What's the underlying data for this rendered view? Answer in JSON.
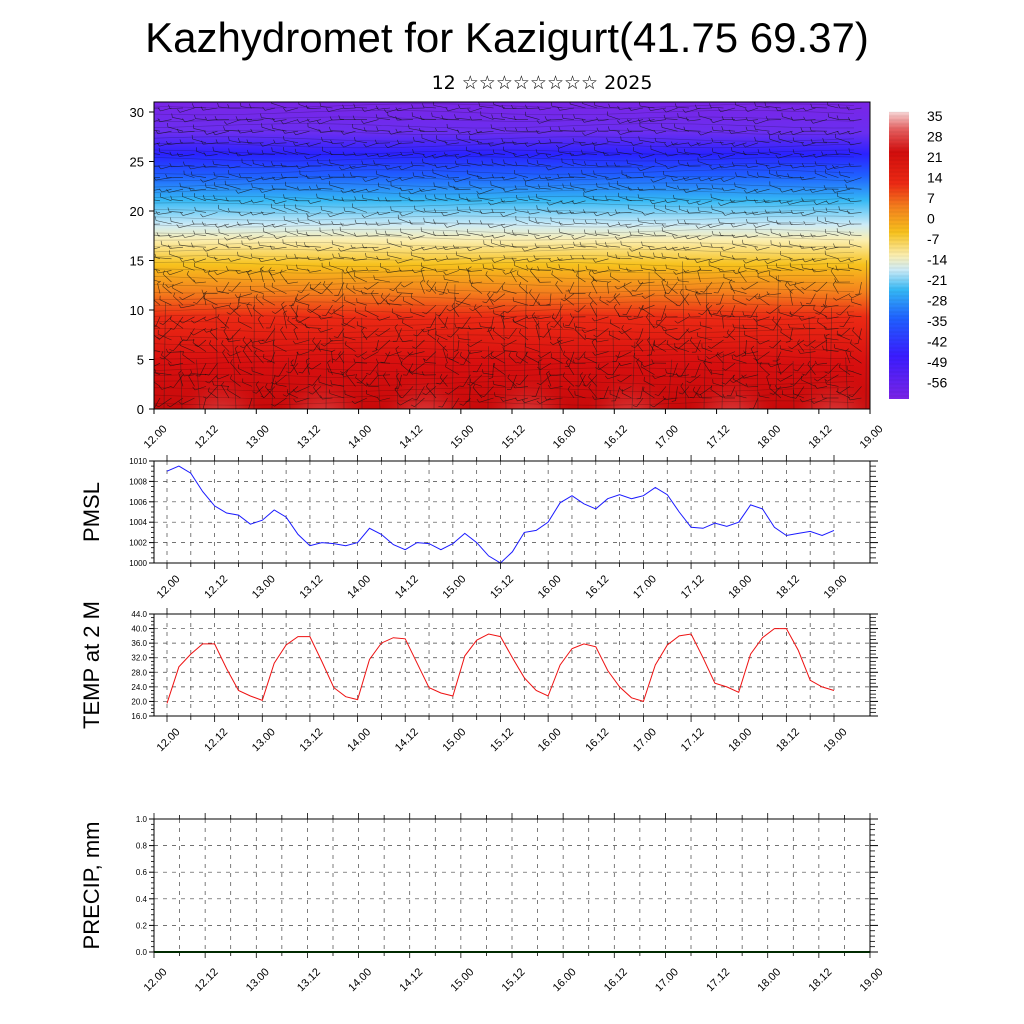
{
  "title": "Kazhydromet for Kazigurt(41.75 69.37)",
  "subtitle": "12 ☆☆☆☆☆☆☆☆ 2025",
  "time_labels": [
    "12.00",
    "12.12",
    "13.00",
    "13.12",
    "14.00",
    "14.12",
    "15.00",
    "15.12",
    "16.00",
    "16.12",
    "17.00",
    "17.12",
    "18.00",
    "18.12",
    "19.00"
  ],
  "chart_data": [
    {
      "type": "heatmap",
      "name": "temperature-wind-section",
      "xlabel": "",
      "ylabel": "",
      "ylim": [
        0,
        30
      ],
      "y_ticks": [
        "0",
        "5",
        "10",
        "15",
        "20",
        "25",
        "30"
      ],
      "colorbar_labels": [
        "35",
        "28",
        "21",
        "14",
        "7",
        "0",
        "-7",
        "-14",
        "-21",
        "-28",
        "-35",
        "-42",
        "-49",
        "-56"
      ],
      "colorbar_range": [
        -63,
        42
      ],
      "color_stops": [
        "#7a25e6",
        "#3a1cff",
        "#1f60ff",
        "#34b8f5",
        "#cdebf7",
        "#fbeeb0",
        "#f7c21d",
        "#f47f1d",
        "#ec2a14",
        "#d20d0d",
        "#e56060",
        "#f7d6d6"
      ],
      "wind_barbs": "overlay"
    },
    {
      "type": "line",
      "name": "pmsl",
      "ylabel": "PMSL",
      "ylim": [
        1000,
        1010
      ],
      "y_ticks": [
        "1000",
        "1002",
        "1004",
        "1006",
        "1008",
        "1010"
      ],
      "color": "#1a1aff",
      "values": [
        1009.0,
        1009.5,
        1008.8,
        1007.0,
        1005.6,
        1004.9,
        1004.7,
        1003.8,
        1004.2,
        1005.2,
        1004.5,
        1002.8,
        1001.7,
        1002.0,
        1001.9,
        1001.7,
        1002.0,
        1003.4,
        1002.8,
        1001.8,
        1001.3,
        1002.0,
        1001.9,
        1001.3,
        1001.9,
        1002.9,
        1002.0,
        1000.7,
        1000.0,
        1001.1,
        1003.0,
        1003.2,
        1004.0,
        1005.9,
        1006.6,
        1005.8,
        1005.3,
        1006.3,
        1006.7,
        1006.3,
        1006.6,
        1007.4,
        1006.7,
        1005.0,
        1003.5,
        1003.4,
        1003.9,
        1003.6,
        1004.0,
        1005.7,
        1005.3,
        1003.5,
        1002.7,
        1002.9,
        1003.1,
        1002.7,
        1003.2
      ],
      "grid": true
    },
    {
      "type": "line",
      "name": "temp-2m",
      "ylabel": "TEMP at 2 M",
      "ylim": [
        16,
        44
      ],
      "y_ticks": [
        "16.0",
        "20.0",
        "24.0",
        "28.0",
        "32.0",
        "36.0",
        "40.0",
        "44.0"
      ],
      "color": "#ee1111",
      "values": [
        19.5,
        29.5,
        33.0,
        35.8,
        35.8,
        29.0,
        23.0,
        21.5,
        20.3,
        30.5,
        35.5,
        37.8,
        37.8,
        31.0,
        23.8,
        21.3,
        20.5,
        31.5,
        36.0,
        37.5,
        37.2,
        30.5,
        23.8,
        22.3,
        21.5,
        32.5,
        36.8,
        38.5,
        37.8,
        32.0,
        26.5,
        23.0,
        21.5,
        30.0,
        34.5,
        35.8,
        35.0,
        28.5,
        24.0,
        21.0,
        20.0,
        30.0,
        35.5,
        38.0,
        38.5,
        32.0,
        25.0,
        24.0,
        22.5,
        33.0,
        37.5,
        40.0,
        40.0,
        34.0,
        25.8,
        24.0,
        23.0
      ],
      "grid": true
    },
    {
      "type": "line",
      "name": "precip",
      "ylabel": "PRECIP, mm",
      "ylim": [
        0,
        1
      ],
      "y_ticks": [
        "0.0",
        "0.2",
        "0.4",
        "0.6",
        "0.8",
        "1.0"
      ],
      "color": "#005500",
      "values": [
        0,
        0,
        0,
        0,
        0,
        0,
        0,
        0,
        0,
        0,
        0,
        0,
        0,
        0,
        0,
        0,
        0,
        0,
        0,
        0,
        0,
        0,
        0,
        0,
        0,
        0,
        0,
        0,
        0,
        0,
        0,
        0,
        0,
        0,
        0,
        0,
        0,
        0,
        0,
        0,
        0,
        0,
        0,
        0,
        0,
        0,
        0,
        0,
        0,
        0,
        0,
        0,
        0,
        0,
        0,
        0,
        0
      ],
      "grid": true
    }
  ]
}
